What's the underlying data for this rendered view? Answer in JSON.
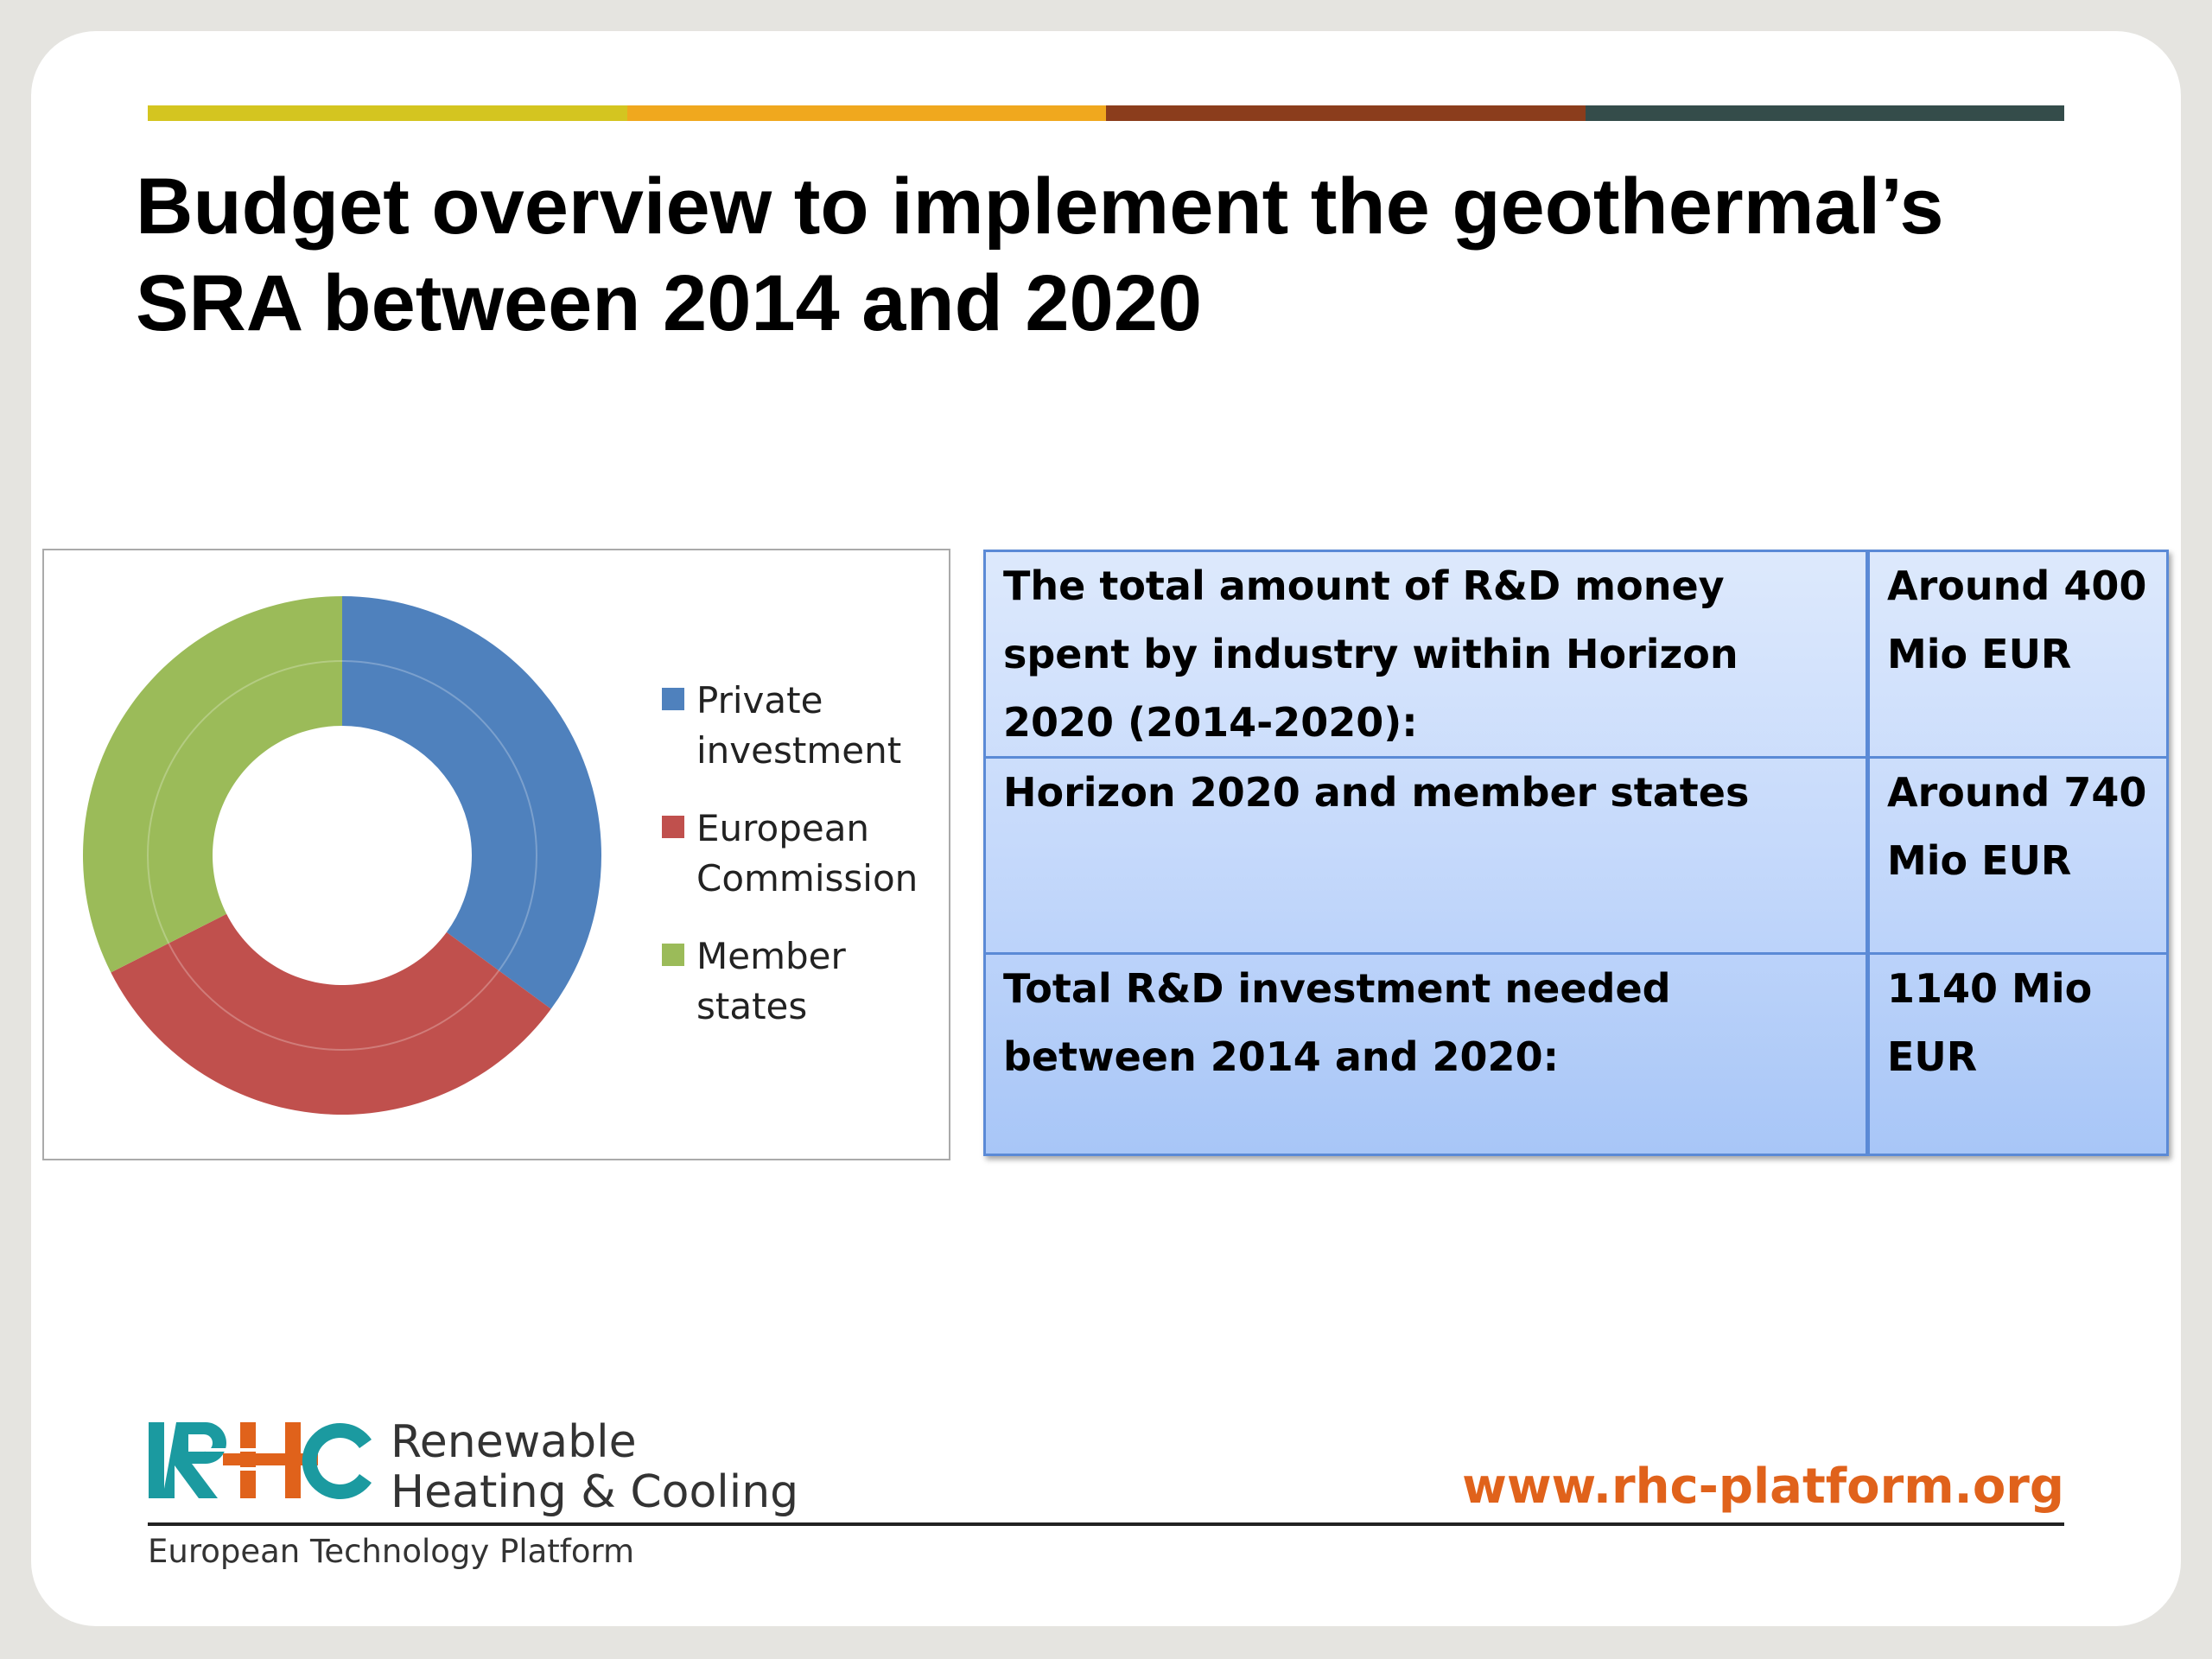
{
  "colors": {
    "bar": [
      "#d4c520",
      "#f0a81e",
      "#8b3d1c",
      "#344c4a"
    ],
    "accent_url": "#e0621b",
    "table_border": "#5b8ad6"
  },
  "title": {
    "line1": "Budget overview to implement the geothermal’s",
    "line2": "SRA between 2014 and 2020"
  },
  "chart_data": {
    "type": "pie",
    "style": "doughnut",
    "categories": [
      "Private investment",
      "European Commission",
      "Member states"
    ],
    "values": [
      400,
      370,
      370
    ],
    "colors": [
      "#4f81bd",
      "#c0504d",
      "#9bbb59"
    ],
    "legend_position": "right"
  },
  "legend": [
    {
      "label": "Private\ninvestment",
      "color": "#4f81bd"
    },
    {
      "label": "European\nCommission",
      "color": "#c0504d"
    },
    {
      "label": "Member\nstates",
      "color": "#9bbb59"
    }
  ],
  "table": {
    "rows": [
      {
        "label": "The total amount of R&D money spent by industry within Horizon 2020 (2014-2020):",
        "value": "Around 400 Mio EUR"
      },
      {
        "label": "Horizon 2020 and member states",
        "value": "Around 740 Mio EUR"
      },
      {
        "label": "Total R&D investment needed between 2014 and 2020:",
        "value": "1140 Mio EUR"
      }
    ]
  },
  "footer": {
    "logo_letters": "RHC",
    "logo_line1": "Renewable",
    "logo_line2": "Heating & Cooling",
    "platform": "European Technology Platform",
    "url": "www.rhc-platform.org"
  }
}
